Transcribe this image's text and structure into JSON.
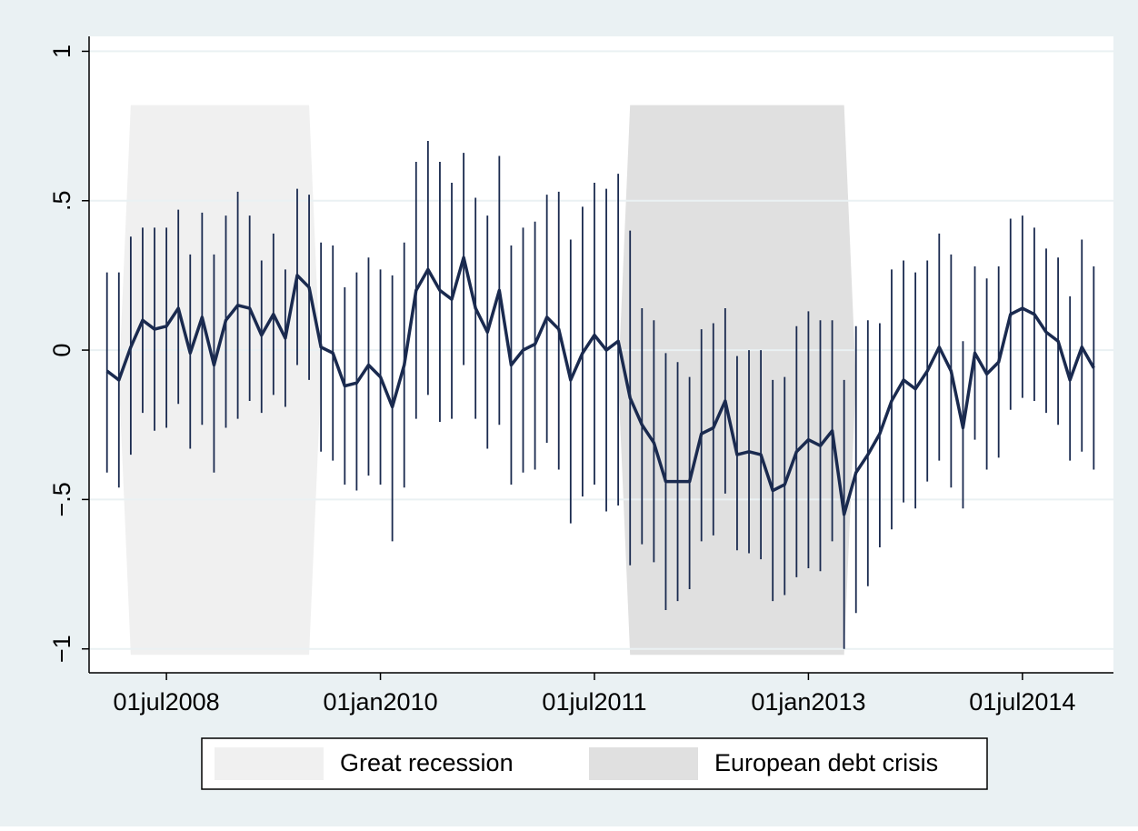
{
  "chart_data": {
    "type": "line",
    "x": [
      "2008-02-01",
      "2008-03-01",
      "2008-04-01",
      "2008-05-01",
      "2008-06-01",
      "2008-07-01",
      "2008-08-01",
      "2008-09-01",
      "2008-10-01",
      "2008-11-01",
      "2008-12-01",
      "2009-01-01",
      "2009-02-01",
      "2009-03-01",
      "2009-04-01",
      "2009-05-01",
      "2009-06-01",
      "2009-07-01",
      "2009-08-01",
      "2009-09-01",
      "2009-10-01",
      "2009-11-01",
      "2009-12-01",
      "2010-01-01",
      "2010-02-01",
      "2010-03-01",
      "2010-04-01",
      "2010-05-01",
      "2010-06-01",
      "2010-07-01",
      "2010-08-01",
      "2010-09-01",
      "2010-10-01",
      "2010-11-01",
      "2010-12-01",
      "2011-01-01",
      "2011-02-01",
      "2011-03-01",
      "2011-04-01",
      "2011-05-01",
      "2011-06-01",
      "2011-07-01",
      "2011-08-01",
      "2011-09-01",
      "2011-10-01",
      "2011-11-01",
      "2011-12-01",
      "2012-01-01",
      "2012-02-01",
      "2012-03-01",
      "2012-04-01",
      "2012-05-01",
      "2012-06-01",
      "2012-07-01",
      "2012-08-01",
      "2012-09-01",
      "2012-10-01",
      "2012-11-01",
      "2012-12-01",
      "2013-01-01",
      "2013-02-01",
      "2013-03-01",
      "2013-04-01",
      "2013-05-01",
      "2013-06-01",
      "2013-07-01",
      "2013-08-01",
      "2013-09-01",
      "2013-10-01",
      "2013-11-01",
      "2013-12-01",
      "2014-01-01",
      "2014-02-01",
      "2014-03-01",
      "2014-04-01",
      "2014-05-01",
      "2014-06-01",
      "2014-07-01",
      "2014-08-01",
      "2014-09-01",
      "2014-10-01",
      "2014-11-01",
      "2014-12-01",
      "2015-01-01"
    ],
    "series": [
      {
        "color": "#1a2a4f",
        "values": [
          -0.07,
          -0.1,
          0.01,
          0.1,
          0.07,
          0.08,
          0.14,
          -0.01,
          0.11,
          -0.05,
          0.1,
          0.15,
          0.14,
          0.05,
          0.12,
          0.04,
          0.25,
          0.21,
          0.01,
          -0.01,
          -0.12,
          -0.11,
          -0.05,
          -0.09,
          -0.19,
          -0.05,
          0.2,
          0.27,
          0.2,
          0.17,
          0.31,
          0.14,
          0.06,
          0.2,
          -0.05,
          0.0,
          0.02,
          0.11,
          0.07,
          -0.1,
          -0.01,
          0.05,
          0.0,
          0.03,
          -0.16,
          -0.25,
          -0.31,
          -0.44,
          -0.44,
          -0.44,
          -0.28,
          -0.26,
          -0.17,
          -0.35,
          -0.34,
          -0.35,
          -0.47,
          -0.45,
          -0.34,
          -0.3,
          -0.32,
          -0.27,
          -0.55,
          -0.41,
          -0.35,
          -0.28,
          -0.17,
          -0.1,
          -0.13,
          -0.07,
          0.01,
          -0.07,
          -0.26,
          -0.01,
          -0.08,
          -0.04,
          0.12,
          0.14,
          0.12,
          0.06,
          0.03,
          -0.1,
          0.01,
          -0.06
        ],
        "lower": [
          -0.41,
          -0.46,
          -0.35,
          -0.21,
          -0.27,
          -0.26,
          -0.18,
          -0.33,
          -0.25,
          -0.41,
          -0.26,
          -0.23,
          -0.17,
          -0.21,
          -0.15,
          -0.19,
          -0.05,
          -0.1,
          -0.34,
          -0.37,
          -0.45,
          -0.47,
          -0.42,
          -0.45,
          -0.64,
          -0.46,
          -0.23,
          -0.15,
          -0.24,
          -0.23,
          -0.05,
          -0.23,
          -0.33,
          -0.25,
          -0.45,
          -0.41,
          -0.4,
          -0.31,
          -0.4,
          -0.58,
          -0.49,
          -0.45,
          -0.54,
          -0.52,
          -0.72,
          -0.65,
          -0.71,
          -0.87,
          -0.84,
          -0.8,
          -0.64,
          -0.62,
          -0.48,
          -0.67,
          -0.68,
          -0.7,
          -0.84,
          -0.82,
          -0.76,
          -0.73,
          -0.74,
          -0.64,
          -1.0,
          -0.88,
          -0.79,
          -0.66,
          -0.6,
          -0.51,
          -0.53,
          -0.44,
          -0.37,
          -0.46,
          -0.53,
          -0.3,
          -0.4,
          -0.36,
          -0.2,
          -0.16,
          -0.17,
          -0.21,
          -0.25,
          -0.37,
          -0.34,
          -0.4
        ],
        "upper": [
          0.26,
          0.26,
          0.38,
          0.41,
          0.41,
          0.41,
          0.47,
          0.32,
          0.46,
          0.32,
          0.45,
          0.53,
          0.45,
          0.3,
          0.39,
          0.27,
          0.54,
          0.52,
          0.36,
          0.35,
          0.21,
          0.26,
          0.31,
          0.27,
          0.25,
          0.36,
          0.63,
          0.7,
          0.63,
          0.56,
          0.66,
          0.51,
          0.45,
          0.65,
          0.35,
          0.41,
          0.43,
          0.52,
          0.53,
          0.37,
          0.48,
          0.56,
          0.54,
          0.59,
          0.4,
          0.14,
          0.1,
          -0.01,
          -0.04,
          -0.09,
          0.07,
          0.09,
          0.14,
          -0.02,
          0.0,
          0.0,
          -0.1,
          -0.09,
          0.08,
          0.13,
          0.1,
          0.1,
          -0.1,
          0.08,
          0.1,
          0.09,
          0.27,
          0.3,
          0.26,
          0.3,
          0.39,
          0.32,
          0.03,
          0.28,
          0.24,
          0.28,
          0.44,
          0.45,
          0.41,
          0.34,
          0.31,
          0.18,
          0.37,
          0.28
        ]
      }
    ],
    "regions": [
      {
        "name": "Great recession",
        "start": "2008-04-01",
        "end": "2009-07-01",
        "ymin": -1.02,
        "ymax": 0.82,
        "color": "#f0f0f0"
      },
      {
        "name": "European debt crisis",
        "start": "2011-10-01",
        "end": "2013-04-01",
        "ymin": -1.02,
        "ymax": 0.82,
        "color": "#e0e0e0"
      }
    ],
    "xlim": [
      "2007-12-16",
      "2015-02-21"
    ],
    "xticks": [
      {
        "value": "2008-07-01",
        "label": "01jul2008"
      },
      {
        "value": "2010-01-01",
        "label": "01jan2010"
      },
      {
        "value": "2011-07-01",
        "label": "01jul2011"
      },
      {
        "value": "2013-01-01",
        "label": "01jan2013"
      },
      {
        "value": "2014-07-01",
        "label": "01jul2014"
      }
    ],
    "ylim": [
      -1.08,
      1.05
    ],
    "yticks": [
      {
        "value": -1,
        "label": "−1"
      },
      {
        "value": -0.5,
        "label": "−.5"
      },
      0,
      {
        "value": 0.5,
        "label": ".5"
      },
      1
    ],
    "grid": true,
    "legend": "bottom"
  }
}
